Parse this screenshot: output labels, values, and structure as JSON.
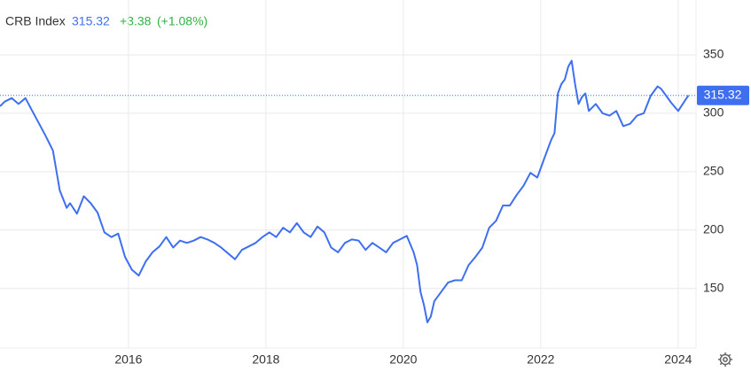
{
  "chart_data": {
    "type": "line",
    "title": "CRB Index",
    "last_value": 315.32,
    "change": "+3.38",
    "change_percent": "(+1.08%)",
    "x": [
      2014.13,
      2014.2,
      2014.3,
      2014.4,
      2014.5,
      2014.6,
      2014.7,
      2014.8,
      2014.9,
      2015.0,
      2015.1,
      2015.15,
      2015.25,
      2015.35,
      2015.45,
      2015.55,
      2015.65,
      2015.75,
      2015.85,
      2015.95,
      2016.05,
      2016.15,
      2016.25,
      2016.35,
      2016.45,
      2016.55,
      2016.65,
      2016.75,
      2016.85,
      2016.95,
      2017.05,
      2017.15,
      2017.25,
      2017.35,
      2017.45,
      2017.55,
      2017.65,
      2017.75,
      2017.85,
      2017.95,
      2018.05,
      2018.15,
      2018.25,
      2018.35,
      2018.45,
      2018.55,
      2018.65,
      2018.75,
      2018.85,
      2018.95,
      2019.05,
      2019.15,
      2019.25,
      2019.35,
      2019.45,
      2019.55,
      2019.65,
      2019.75,
      2019.85,
      2019.95,
      2020.05,
      2020.15,
      2020.2,
      2020.25,
      2020.3,
      2020.35,
      2020.4,
      2020.45,
      2020.55,
      2020.65,
      2020.75,
      2020.85,
      2020.95,
      2021.05,
      2021.15,
      2021.25,
      2021.35,
      2021.45,
      2021.55,
      2021.65,
      2021.75,
      2021.85,
      2021.95,
      2022.05,
      2022.15,
      2022.2,
      2022.25,
      2022.3,
      2022.35,
      2022.4,
      2022.45,
      2022.5,
      2022.55,
      2022.6,
      2022.65,
      2022.7,
      2022.8,
      2022.9,
      2023.0,
      2023.1,
      2023.2,
      2023.3,
      2023.4,
      2023.5,
      2023.6,
      2023.7,
      2023.75,
      2023.8,
      2023.9,
      2024.0,
      2024.1,
      2024.15
    ],
    "series": [
      {
        "name": "CRB Index",
        "color": "#3d6ff0",
        "values": [
          306,
          310,
          313,
          308,
          313,
          302,
          291,
          280,
          268,
          234,
          219,
          223,
          214,
          229,
          223,
          215,
          198,
          194,
          197,
          177,
          166,
          161,
          173,
          181,
          186,
          194,
          185,
          191,
          189,
          191,
          194,
          192,
          189,
          185,
          180,
          175,
          183,
          186,
          189,
          194,
          198,
          194,
          202,
          198,
          206,
          198,
          194,
          203,
          198,
          185,
          181,
          189,
          192,
          191,
          183,
          189,
          185,
          181,
          189,
          192,
          195,
          181,
          170,
          147,
          136,
          121,
          126,
          139,
          147,
          155,
          157,
          157,
          170,
          177,
          185,
          202,
          208,
          221,
          221,
          230,
          238,
          249,
          245,
          261,
          277,
          283,
          317,
          325,
          329,
          340,
          345,
          325,
          308,
          314,
          317,
          302,
          308,
          300,
          298,
          302,
          289,
          291,
          298,
          300,
          315,
          323,
          321,
          317,
          309,
          302,
          311,
          315.32
        ]
      }
    ],
    "xlim": [
      2014.13,
      2024.26
    ],
    "xticks": [
      2016,
      2018,
      2020,
      2022,
      2024
    ],
    "ylim": [
      99,
      397
    ],
    "yticks": [
      150,
      200,
      250,
      300,
      350
    ],
    "grid": true
  }
}
